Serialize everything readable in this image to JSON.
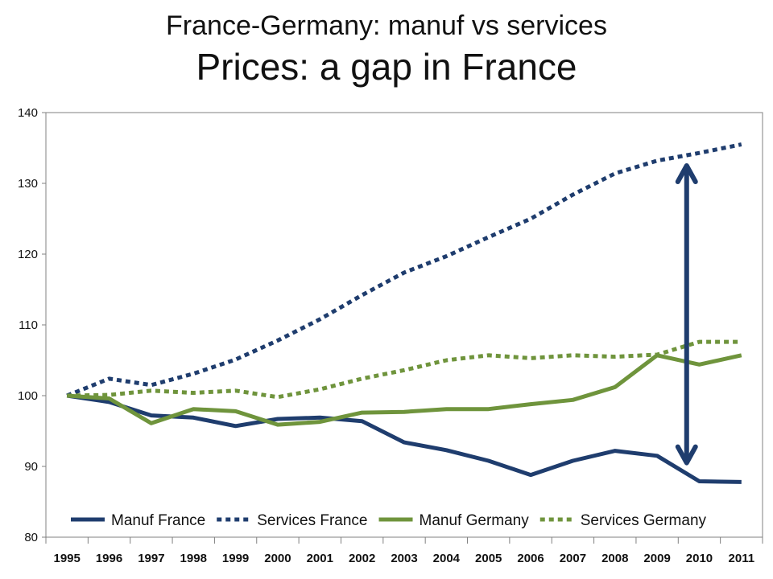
{
  "title": "France-Germany: manuf vs services",
  "subtitle": "Prices: a gap in France",
  "colors": {
    "france": "#1f3d6e",
    "germany": "#6f943c",
    "grid": "#c8c8c8",
    "axis": "#808080"
  },
  "chart_data": {
    "type": "line",
    "title": "",
    "xlabel": "",
    "ylabel": "",
    "x": [
      "1995",
      "1996",
      "1997",
      "1998",
      "1999",
      "2000",
      "2001",
      "2002",
      "2003",
      "2004",
      "2005",
      "2006",
      "2007",
      "2008",
      "2009",
      "2010",
      "2011"
    ],
    "ylim": [
      80,
      140
    ],
    "yticks": [
      80,
      90,
      100,
      110,
      120,
      130,
      140
    ],
    "grid": false,
    "legend_position": "bottom",
    "series": [
      {
        "name": "Manuf France",
        "style": "solid",
        "color": "#1f3d6e",
        "values": [
          100,
          99.1,
          97.2,
          96.9,
          95.7,
          96.7,
          96.9,
          96.4,
          93.4,
          92.3,
          90.8,
          88.8,
          90.8,
          92.2,
          91.5,
          87.9,
          87.8
        ]
      },
      {
        "name": "Services France",
        "style": "dotted",
        "color": "#1f3d6e",
        "values": [
          100,
          102.4,
          101.5,
          103.1,
          105.1,
          107.8,
          110.8,
          114.2,
          117.4,
          119.7,
          122.4,
          125.0,
          128.4,
          131.4,
          133.2,
          134.3,
          135.5
        ]
      },
      {
        "name": "Manuf Germany",
        "style": "solid",
        "color": "#6f943c",
        "values": [
          100,
          99.6,
          96.1,
          98.1,
          97.8,
          95.9,
          96.3,
          97.6,
          97.7,
          98.1,
          98.1,
          98.8,
          99.4,
          101.2,
          105.7,
          104.4,
          105.7
        ]
      },
      {
        "name": "Services Germany",
        "style": "dotted",
        "color": "#6f943c",
        "values": [
          100,
          100.1,
          100.7,
          100.4,
          100.7,
          99.8,
          100.9,
          102.4,
          103.6,
          105.0,
          105.7,
          105.3,
          105.7,
          105.5,
          105.8,
          107.6,
          107.6
        ]
      }
    ],
    "annotations": [
      {
        "type": "double-arrow",
        "x": "2009.7",
        "y_from": 90.5,
        "y_to": 132.5,
        "color": "#1f3d6e"
      }
    ]
  }
}
